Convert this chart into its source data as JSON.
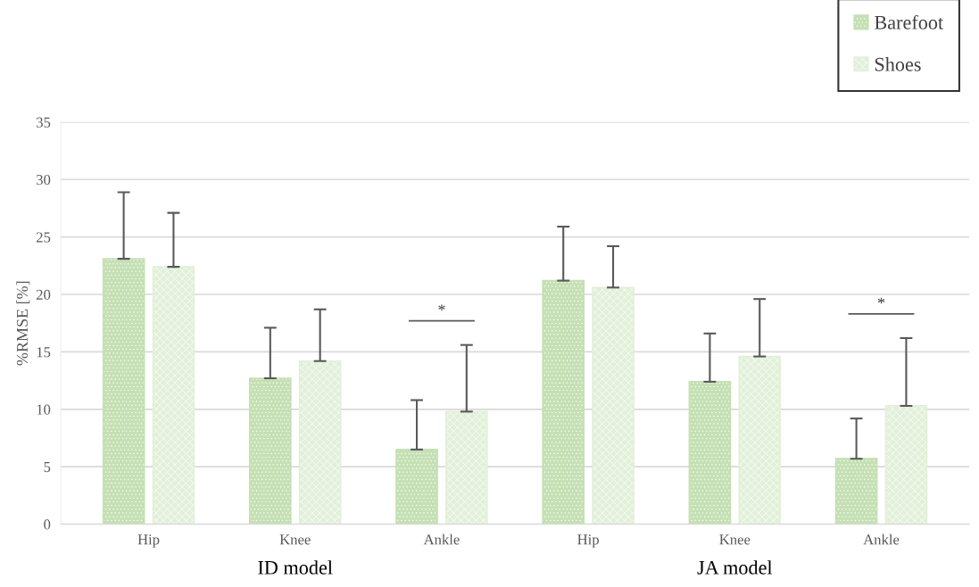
{
  "chart_data": {
    "type": "bar",
    "ylabel": "%RMSE [%]",
    "categories": [
      "Hip",
      "Knee",
      "Ankle",
      "Hip",
      "Knee",
      "Ankle"
    ],
    "series": [
      {
        "name": "Barefoot",
        "color": "#c5e0b4",
        "values": [
          23.1,
          12.7,
          6.5,
          21.2,
          12.4,
          5.7
        ],
        "errors": [
          [
            23.1,
            28.9
          ],
          [
            12.7,
            17.1
          ],
          [
            6.5,
            10.8
          ],
          [
            21.2,
            25.9
          ],
          [
            12.4,
            16.6
          ],
          [
            5.7,
            9.2
          ]
        ]
      },
      {
        "name": "Shoes",
        "color": "#e2f0d9",
        "values": [
          22.4,
          14.2,
          9.8,
          20.6,
          14.6,
          10.3
        ],
        "errors": [
          [
            22.4,
            27.1
          ],
          [
            14.2,
            18.7
          ],
          [
            9.8,
            15.6
          ],
          [
            20.6,
            24.2
          ],
          [
            14.6,
            19.6
          ],
          [
            10.3,
            16.2
          ]
        ]
      }
    ],
    "ylim": [
      0,
      35
    ],
    "yticks": [
      0,
      5,
      10,
      15,
      20,
      25,
      30,
      35
    ],
    "grid": "y",
    "legend": "top right",
    "annotations": [
      "ID model",
      "JA model",
      "*",
      "*"
    ]
  }
}
